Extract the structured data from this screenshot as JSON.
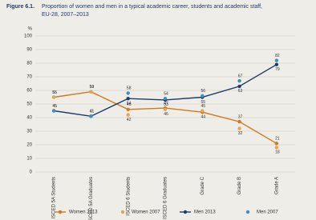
{
  "chart_data": {
    "type": "line",
    "figure_label": "Figure 6.1.",
    "title": "Proportion of women and men in a typical academic career, students and academic staff,",
    "subtitle": "EU-28, 2007–2013",
    "y_label": "%",
    "categories": [
      "ISCED 5A Students",
      "ISCED 5A Graduates",
      "ISCED 6 Students",
      "ISCED 6 Graduates",
      "Grade C",
      "Grade B",
      "Grade A"
    ],
    "series": [
      {
        "name": "Women 2013",
        "color": "#cf7a1c",
        "mode": "lines+markers",
        "values": [
          55,
          59,
          46,
          47,
          44,
          37,
          21
        ]
      },
      {
        "name": "Women 2007",
        "color": "#e3a558",
        "mode": "markers",
        "values": [
          55,
          59,
          42,
          46,
          45,
          32,
          18
        ]
      },
      {
        "name": "Men 2013",
        "color": "#1f3a6b",
        "mode": "lines+markers",
        "values": [
          45,
          41,
          54,
          53,
          55,
          63,
          79
        ]
      },
      {
        "name": "Men 2007",
        "color": "#3d8fbf",
        "mode": "markers",
        "values": [
          45,
          41,
          58,
          54,
          56,
          67,
          82
        ]
      }
    ],
    "ylim": [
      0,
      100
    ],
    "yticks": [
      0,
      10,
      20,
      30,
      40,
      50,
      60,
      70,
      80,
      90,
      100
    ],
    "grid": true,
    "legend": "bottom"
  }
}
